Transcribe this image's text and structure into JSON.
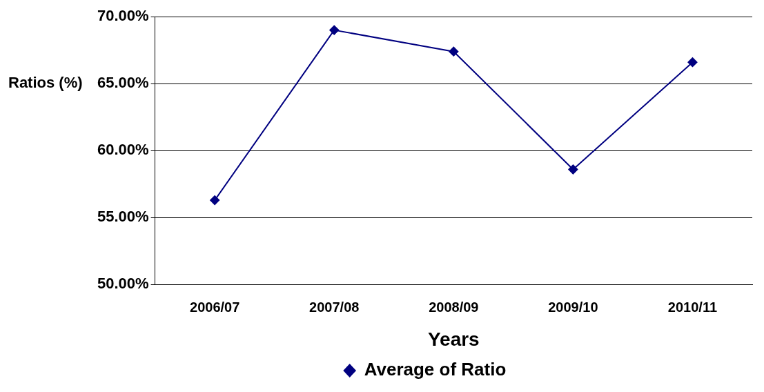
{
  "chart_data": {
    "type": "line",
    "xlabel": "Years",
    "ylabel": "Ratios (%)",
    "categories": [
      "2006/07",
      "2007/08",
      "2008/09",
      "2009/10",
      "2010/11"
    ],
    "series": [
      {
        "name": "Average of Ratio",
        "color": "#000080",
        "values": [
          56.3,
          69.0,
          67.4,
          58.6,
          66.6
        ]
      }
    ],
    "ylim": [
      50,
      70
    ],
    "yticks": [
      {
        "value": 50,
        "label": "50.00%"
      },
      {
        "value": 55,
        "label": "55.00%"
      },
      {
        "value": 60,
        "label": "60.00%"
      },
      {
        "value": 65,
        "label": "65.00%"
      },
      {
        "value": 70,
        "label": "70.00%"
      }
    ],
    "grid": "y",
    "legend": "bottom",
    "marker": "diamond",
    "line_style": "solid"
  }
}
